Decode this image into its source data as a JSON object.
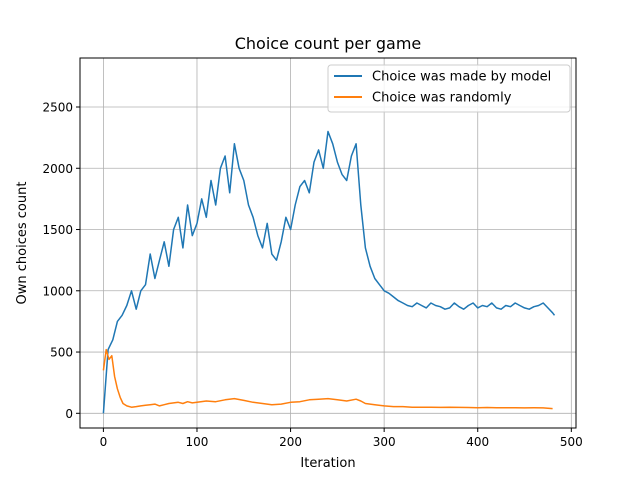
{
  "chart_data": {
    "type": "line",
    "title": "Choice count per game",
    "xlabel": "Iteration",
    "ylabel": "Own choices count",
    "xlim": [
      -25,
      505
    ],
    "ylim": [
      -120,
      2900
    ],
    "xticks": [
      0,
      100,
      200,
      300,
      400,
      500
    ],
    "yticks": [
      0,
      500,
      1000,
      1500,
      2000,
      2500
    ],
    "grid": true,
    "legend": "top-right",
    "series": [
      {
        "name": "Choice was made by model",
        "color": "#1f77b4",
        "x": [
          0,
          5,
          10,
          15,
          20,
          25,
          30,
          35,
          40,
          45,
          50,
          55,
          60,
          65,
          70,
          75,
          80,
          85,
          90,
          95,
          100,
          105,
          110,
          115,
          120,
          125,
          130,
          135,
          140,
          145,
          150,
          155,
          160,
          165,
          170,
          175,
          180,
          185,
          190,
          195,
          200,
          205,
          210,
          215,
          220,
          225,
          230,
          235,
          240,
          245,
          250,
          255,
          260,
          265,
          270,
          275,
          280,
          285,
          290,
          295,
          300,
          305,
          310,
          315,
          320,
          325,
          330,
          335,
          340,
          345,
          350,
          355,
          360,
          365,
          370,
          375,
          380,
          385,
          390,
          395,
          400,
          405,
          410,
          415,
          420,
          425,
          430,
          435,
          440,
          445,
          450,
          455,
          460,
          465,
          470,
          475,
          480,
          482
        ],
        "values": [
          0,
          520,
          600,
          750,
          800,
          880,
          1000,
          850,
          1000,
          1050,
          1300,
          1100,
          1250,
          1400,
          1200,
          1500,
          1600,
          1350,
          1700,
          1450,
          1550,
          1750,
          1600,
          1900,
          1700,
          2000,
          2100,
          1800,
          2200,
          2000,
          1900,
          1700,
          1600,
          1450,
          1350,
          1550,
          1300,
          1250,
          1400,
          1600,
          1500,
          1700,
          1850,
          1900,
          1800,
          2050,
          2150,
          2000,
          2300,
          2200,
          2050,
          1950,
          1900,
          2100,
          2200,
          1700,
          1350,
          1200,
          1100,
          1050,
          1000,
          980,
          950,
          920,
          900,
          880,
          870,
          900,
          880,
          860,
          900,
          880,
          870,
          850,
          860,
          900,
          870,
          850,
          880,
          900,
          860,
          880,
          870,
          900,
          860,
          850,
          880,
          870,
          900,
          880,
          860,
          850,
          870,
          880,
          900,
          860,
          820,
          800
        ]
      },
      {
        "name": "Choice was randomly",
        "color": "#ff7f0e",
        "x": [
          0,
          3,
          6,
          9,
          12,
          15,
          18,
          21,
          25,
          30,
          35,
          40,
          45,
          50,
          55,
          60,
          65,
          70,
          75,
          80,
          85,
          90,
          95,
          100,
          110,
          120,
          130,
          140,
          150,
          160,
          170,
          180,
          190,
          200,
          210,
          220,
          230,
          240,
          250,
          260,
          270,
          275,
          280,
          290,
          300,
          310,
          320,
          330,
          340,
          350,
          360,
          370,
          380,
          390,
          400,
          410,
          420,
          430,
          440,
          450,
          460,
          470,
          480
        ],
        "values": [
          350,
          520,
          440,
          470,
          300,
          200,
          130,
          80,
          60,
          50,
          55,
          60,
          65,
          70,
          75,
          60,
          70,
          80,
          85,
          90,
          80,
          95,
          85,
          90,
          100,
          95,
          110,
          120,
          105,
          90,
          80,
          70,
          75,
          90,
          95,
          110,
          115,
          120,
          110,
          100,
          115,
          100,
          80,
          70,
          60,
          55,
          55,
          50,
          50,
          50,
          48,
          50,
          48,
          47,
          45,
          47,
          46,
          45,
          45,
          44,
          45,
          44,
          38
        ]
      }
    ]
  }
}
